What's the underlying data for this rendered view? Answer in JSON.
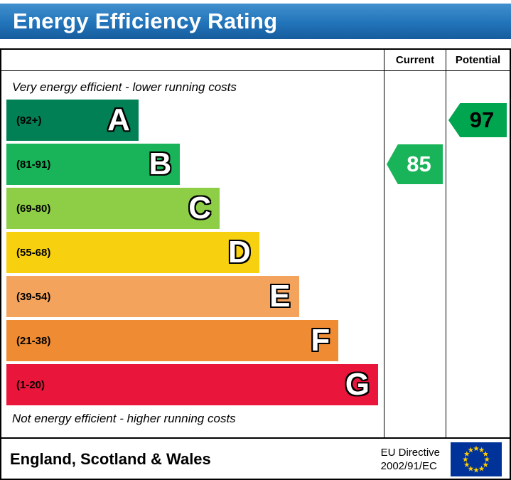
{
  "banner": {
    "title": "Energy Efficiency Rating"
  },
  "table": {
    "current_header": "Current",
    "potential_header": "Potential",
    "top_note": "Very energy efficient - lower running costs",
    "bottom_note": "Not energy efficient - higher running costs"
  },
  "bands": [
    {
      "letter": "A",
      "range": "(92+)",
      "color": "#008054",
      "width_pct": 35
    },
    {
      "letter": "B",
      "range": "(81-91)",
      "color": "#19b459",
      "width_pct": 46
    },
    {
      "letter": "C",
      "range": "(69-80)",
      "color": "#8dce46",
      "width_pct": 56.5
    },
    {
      "letter": "D",
      "range": "(55-68)",
      "color": "#f7d010",
      "width_pct": 67
    },
    {
      "letter": "E",
      "range": "(39-54)",
      "color": "#f3a35c",
      "width_pct": 77.5
    },
    {
      "letter": "F",
      "range": "(21-38)",
      "color": "#ee8b33",
      "width_pct": 88
    },
    {
      "letter": "G",
      "range": "(1-20)",
      "color": "#e9153b",
      "width_pct": 98.5
    }
  ],
  "current": {
    "value": "85",
    "band": "B",
    "color": "#19b459",
    "text_color": "#ffffff"
  },
  "potential": {
    "value": "97",
    "band": "A",
    "color": "#00a54f",
    "text_color": "#000000"
  },
  "footer": {
    "region": "England, Scotland & Wales",
    "directive_line1": "EU Directive",
    "directive_line2": "2002/91/EC",
    "flag_icon": "eu-flag",
    "flag_colors": {
      "field": "#003399",
      "stars": "#ffcc00"
    }
  },
  "chart_data": {
    "type": "bar",
    "title": "Energy Efficiency Rating",
    "categories": [
      "A",
      "B",
      "C",
      "D",
      "E",
      "F",
      "G"
    ],
    "band_ranges": [
      "92+",
      "81-91",
      "69-80",
      "55-68",
      "39-54",
      "21-38",
      "1-20"
    ],
    "band_colors": [
      "#008054",
      "#19b459",
      "#8dce46",
      "#f7d010",
      "#f3a35c",
      "#ee8b33",
      "#e9153b"
    ],
    "scale": [
      1,
      100
    ],
    "series": [
      {
        "name": "Current",
        "value": 85,
        "band": "B"
      },
      {
        "name": "Potential",
        "value": 97,
        "band": "A"
      }
    ],
    "notes": [
      "Very energy efficient - lower running costs",
      "Not energy efficient - higher running costs"
    ],
    "region": "England, Scotland & Wales",
    "directive": "EU Directive 2002/91/EC"
  }
}
